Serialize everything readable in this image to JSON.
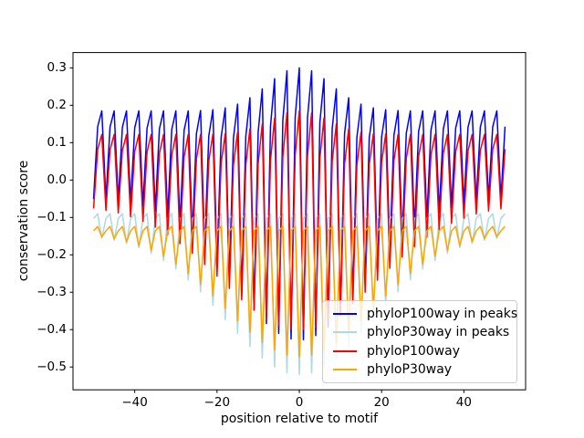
{
  "figure": {
    "background": "#ffffff",
    "spine_color": "#000000",
    "tick_color": "#000000",
    "text_color": "#000000"
  },
  "chart_data": {
    "type": "line",
    "title": "",
    "xlabel": "position relative to motif",
    "ylabel": "conservation score",
    "xlim": [
      -55,
      55
    ],
    "ylim": [
      -0.561,
      0.341
    ],
    "grid": false,
    "legend_position": "lower right",
    "legend_border_color": "#cccccc",
    "x_ticks": [
      {
        "v": -40,
        "label": "−40"
      },
      {
        "v": -20,
        "label": "−20"
      },
      {
        "v": 0,
        "label": "0"
      },
      {
        "v": 20,
        "label": "20"
      },
      {
        "v": 40,
        "label": "40"
      }
    ],
    "y_ticks": [
      {
        "v": 0.3,
        "label": "0.3"
      },
      {
        "v": 0.2,
        "label": "0.2"
      },
      {
        "v": 0.1,
        "label": "0.1"
      },
      {
        "v": 0.0,
        "label": "0.0"
      },
      {
        "v": -0.1,
        "label": "−0.1"
      },
      {
        "v": -0.2,
        "label": "−0.2"
      },
      {
        "v": -0.3,
        "label": "−0.3"
      },
      {
        "v": -0.4,
        "label": "−0.4"
      },
      {
        "v": -0.5,
        "label": "−0.5"
      }
    ],
    "x": [
      -50,
      -49,
      -48,
      -47,
      -46,
      -45,
      -44,
      -43,
      -42,
      -41,
      -40,
      -39,
      -38,
      -37,
      -36,
      -35,
      -34,
      -33,
      -32,
      -31,
      -30,
      -29,
      -28,
      -27,
      -26,
      -25,
      -24,
      -23,
      -22,
      -21,
      -20,
      -19,
      -18,
      -17,
      -16,
      -15,
      -14,
      -13,
      -12,
      -11,
      -10,
      -9,
      -8,
      -7,
      -6,
      -5,
      -4,
      -3,
      -2,
      -1,
      0,
      1,
      2,
      3,
      4,
      5,
      6,
      7,
      8,
      9,
      10,
      11,
      12,
      13,
      14,
      15,
      16,
      17,
      18,
      19,
      20,
      21,
      22,
      23,
      24,
      25,
      26,
      27,
      28,
      29,
      30,
      31,
      32,
      33,
      34,
      35,
      36,
      37,
      38,
      39,
      40,
      41,
      42,
      43,
      44,
      45,
      46,
      47,
      48,
      49,
      50
    ],
    "series": [
      {
        "name": "phyloP100way in peaks",
        "color": "#0000ff",
        "values": [
          -0.051,
          0.143,
          0.185,
          -0.053,
          0.142,
          0.185,
          -0.057,
          0.141,
          0.185,
          -0.062,
          0.14,
          0.185,
          -0.071,
          0.139,
          0.185,
          -0.083,
          0.137,
          0.185,
          -0.099,
          0.135,
          0.185,
          -0.122,
          0.133,
          0.185,
          -0.15,
          0.124,
          0.186,
          -0.183,
          0.118,
          0.188,
          -0.222,
          0.114,
          0.193,
          -0.264,
          0.113,
          0.203,
          -0.307,
          0.117,
          0.22,
          -0.348,
          0.128,
          0.244,
          -0.384,
          0.144,
          0.271,
          -0.41,
          0.16,
          0.292,
          -0.425,
          0.168,
          0.3,
          -0.427,
          0.167,
          0.292,
          -0.416,
          0.155,
          0.271,
          -0.393,
          0.138,
          0.244,
          -0.361,
          0.124,
          0.22,
          -0.321,
          0.115,
          0.203,
          -0.279,
          0.113,
          0.193,
          -0.236,
          0.115,
          0.188,
          -0.196,
          0.12,
          0.186,
          -0.16,
          0.125,
          0.185,
          -0.13,
          0.13,
          0.185,
          -0.106,
          0.134,
          0.185,
          -0.088,
          0.137,
          0.185,
          -0.074,
          0.139,
          0.185,
          -0.065,
          0.141,
          0.185,
          -0.058,
          0.142,
          0.185,
          -0.054,
          0.142,
          0.185,
          -0.052,
          0.143
        ]
      },
      {
        "name": "phyloP30way in peaks",
        "color": "#add8e6",
        "values": [
          -0.103,
          -0.09,
          -0.156,
          -0.103,
          -0.09,
          -0.161,
          -0.103,
          -0.09,
          -0.17,
          -0.103,
          -0.09,
          -0.181,
          -0.103,
          -0.09,
          -0.196,
          -0.103,
          -0.09,
          -0.215,
          -0.103,
          -0.09,
          -0.238,
          -0.103,
          -0.09,
          -0.267,
          -0.103,
          -0.09,
          -0.299,
          -0.103,
          -0.09,
          -0.335,
          -0.103,
          -0.09,
          -0.373,
          -0.103,
          -0.09,
          -0.41,
          -0.103,
          -0.09,
          -0.445,
          -0.103,
          -0.09,
          -0.476,
          -0.103,
          -0.09,
          -0.5,
          -0.103,
          -0.09,
          -0.515,
          -0.103,
          -0.09,
          -0.52,
          -0.103,
          -0.09,
          -0.515,
          -0.103,
          -0.09,
          -0.5,
          -0.103,
          -0.09,
          -0.476,
          -0.103,
          -0.09,
          -0.445,
          -0.103,
          -0.09,
          -0.41,
          -0.103,
          -0.09,
          -0.373,
          -0.103,
          -0.09,
          -0.335,
          -0.103,
          -0.09,
          -0.299,
          -0.103,
          -0.09,
          -0.267,
          -0.103,
          -0.09,
          -0.238,
          -0.103,
          -0.09,
          -0.215,
          -0.103,
          -0.09,
          -0.196,
          -0.103,
          -0.09,
          -0.181,
          -0.103,
          -0.09,
          -0.17,
          -0.103,
          -0.09,
          -0.161,
          -0.103,
          -0.09,
          -0.156,
          -0.103,
          -0.09
        ]
      },
      {
        "name": "phyloP100way",
        "color": "#ff0000",
        "values": [
          -0.076,
          0.082,
          0.122,
          -0.081,
          0.081,
          0.122,
          -0.088,
          0.079,
          0.122,
          -0.098,
          0.077,
          0.122,
          -0.11,
          0.075,
          0.122,
          -0.126,
          0.071,
          0.122,
          -0.146,
          0.067,
          0.122,
          -0.17,
          0.062,
          0.122,
          -0.196,
          0.057,
          0.122,
          -0.226,
          0.051,
          0.123,
          -0.257,
          0.045,
          0.124,
          -0.29,
          0.041,
          0.128,
          -0.32,
          0.041,
          0.137,
          -0.348,
          0.044,
          0.15,
          -0.372,
          0.053,
          0.166,
          -0.389,
          0.062,
          0.18,
          -0.398,
          0.068,
          0.185,
          -0.4,
          0.066,
          0.18,
          -0.393,
          0.059,
          0.166,
          -0.378,
          0.05,
          0.15,
          -0.357,
          0.043,
          0.137,
          -0.33,
          0.04,
          0.128,
          -0.3,
          0.042,
          0.124,
          -0.268,
          0.047,
          0.123,
          -0.236,
          0.053,
          0.122,
          -0.206,
          0.058,
          0.122,
          -0.178,
          0.064,
          0.122,
          -0.153,
          0.068,
          0.122,
          -0.133,
          0.072,
          0.122,
          -0.115,
          0.076,
          0.122,
          -0.102,
          0.078,
          0.122,
          -0.091,
          0.08,
          0.122,
          -0.083,
          0.082,
          0.122,
          -0.077,
          0.083
        ]
      },
      {
        "name": "phyloP30way",
        "color": "#ffa500",
        "values": [
          -0.136,
          -0.124,
          -0.152,
          -0.136,
          -0.124,
          -0.157,
          -0.136,
          -0.124,
          -0.165,
          -0.136,
          -0.124,
          -0.175,
          -0.136,
          -0.124,
          -0.188,
          -0.136,
          -0.124,
          -0.204,
          -0.136,
          -0.124,
          -0.225,
          -0.136,
          -0.124,
          -0.25,
          -0.136,
          -0.124,
          -0.279,
          -0.136,
          -0.124,
          -0.31,
          -0.136,
          -0.124,
          -0.343,
          -0.136,
          -0.124,
          -0.376,
          -0.136,
          -0.124,
          -0.407,
          -0.136,
          -0.124,
          -0.434,
          -0.136,
          -0.124,
          -0.455,
          -0.136,
          -0.124,
          -0.468,
          -0.136,
          -0.124,
          -0.473,
          -0.136,
          -0.124,
          -0.468,
          -0.136,
          -0.124,
          -0.455,
          -0.136,
          -0.124,
          -0.434,
          -0.136,
          -0.124,
          -0.407,
          -0.136,
          -0.124,
          -0.376,
          -0.136,
          -0.124,
          -0.343,
          -0.136,
          -0.124,
          -0.31,
          -0.136,
          -0.124,
          -0.279,
          -0.136,
          -0.124,
          -0.25,
          -0.136,
          -0.124,
          -0.225,
          -0.136,
          -0.124,
          -0.204,
          -0.136,
          -0.124,
          -0.188,
          -0.136,
          -0.124,
          -0.175,
          -0.136,
          -0.124,
          -0.165,
          -0.136,
          -0.124,
          -0.157,
          -0.136,
          -0.124,
          -0.152,
          -0.136,
          -0.124
        ]
      }
    ]
  }
}
